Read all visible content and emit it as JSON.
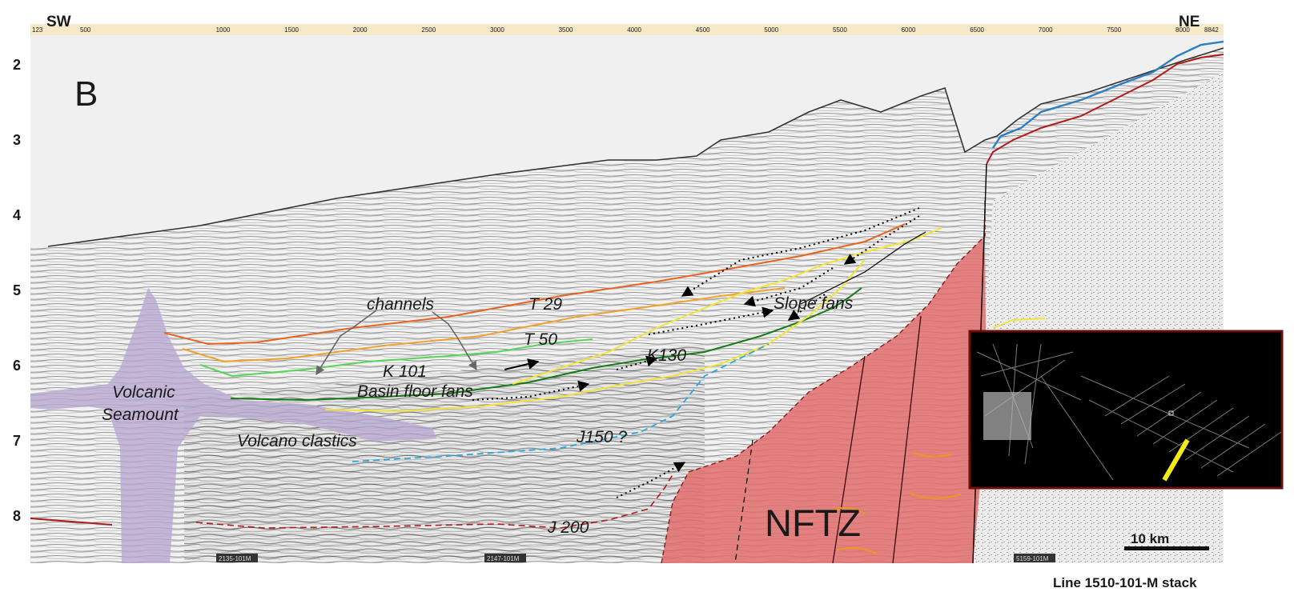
{
  "panel_letter": "B",
  "orientation": {
    "left": "SW",
    "right": "NE"
  },
  "cdp_ticks": {
    "first": "123",
    "values": [
      "500",
      "1000",
      "1500",
      "2000",
      "2500",
      "3000",
      "3500",
      "4000",
      "4500",
      "5000",
      "5500",
      "6000",
      "6500",
      "7000",
      "7500",
      "8000"
    ],
    "last": "8842"
  },
  "depth_ticks": [
    "2",
    "3",
    "4",
    "5",
    "6",
    "7",
    "8"
  ],
  "horizon_labels": {
    "t29": "T 29",
    "t50": "T 50",
    "k101": "K 101",
    "k130": "K130",
    "j150": "J150 ?",
    "j200": "J 200"
  },
  "annotations": {
    "channels": "channels",
    "basin_floor_fans": "Basin floor fans",
    "slope_fans": "Slope fans",
    "volcanic": "Volcanic",
    "seamount": "Seamount",
    "volcano_clastics": "Volcano clastics",
    "nftz": "NFTZ"
  },
  "line_tags": [
    "2135-101M",
    "2147-101M",
    "5159-101M"
  ],
  "scale_bar": "10 km",
  "caption": "Line 1510-101-M stack",
  "colors": {
    "t29": "#e8641e",
    "t50": "#f2a22a",
    "k101": "#2fb52f",
    "k101_light": "#58d658",
    "k130": "#167a16",
    "basin_floor": "#f2e43a",
    "j150": "#2aa8d8",
    "j200": "#b01c1c",
    "seafloor_blue": "#2a7fc4",
    "seafloor_red": "#b01c1c",
    "nftz_fill": "#e07070",
    "volcano_fill": "#b7a6cf",
    "locator_bg": "#000000",
    "locator_border": "#6a0f0f",
    "locator_marker": "#f4ea18"
  }
}
